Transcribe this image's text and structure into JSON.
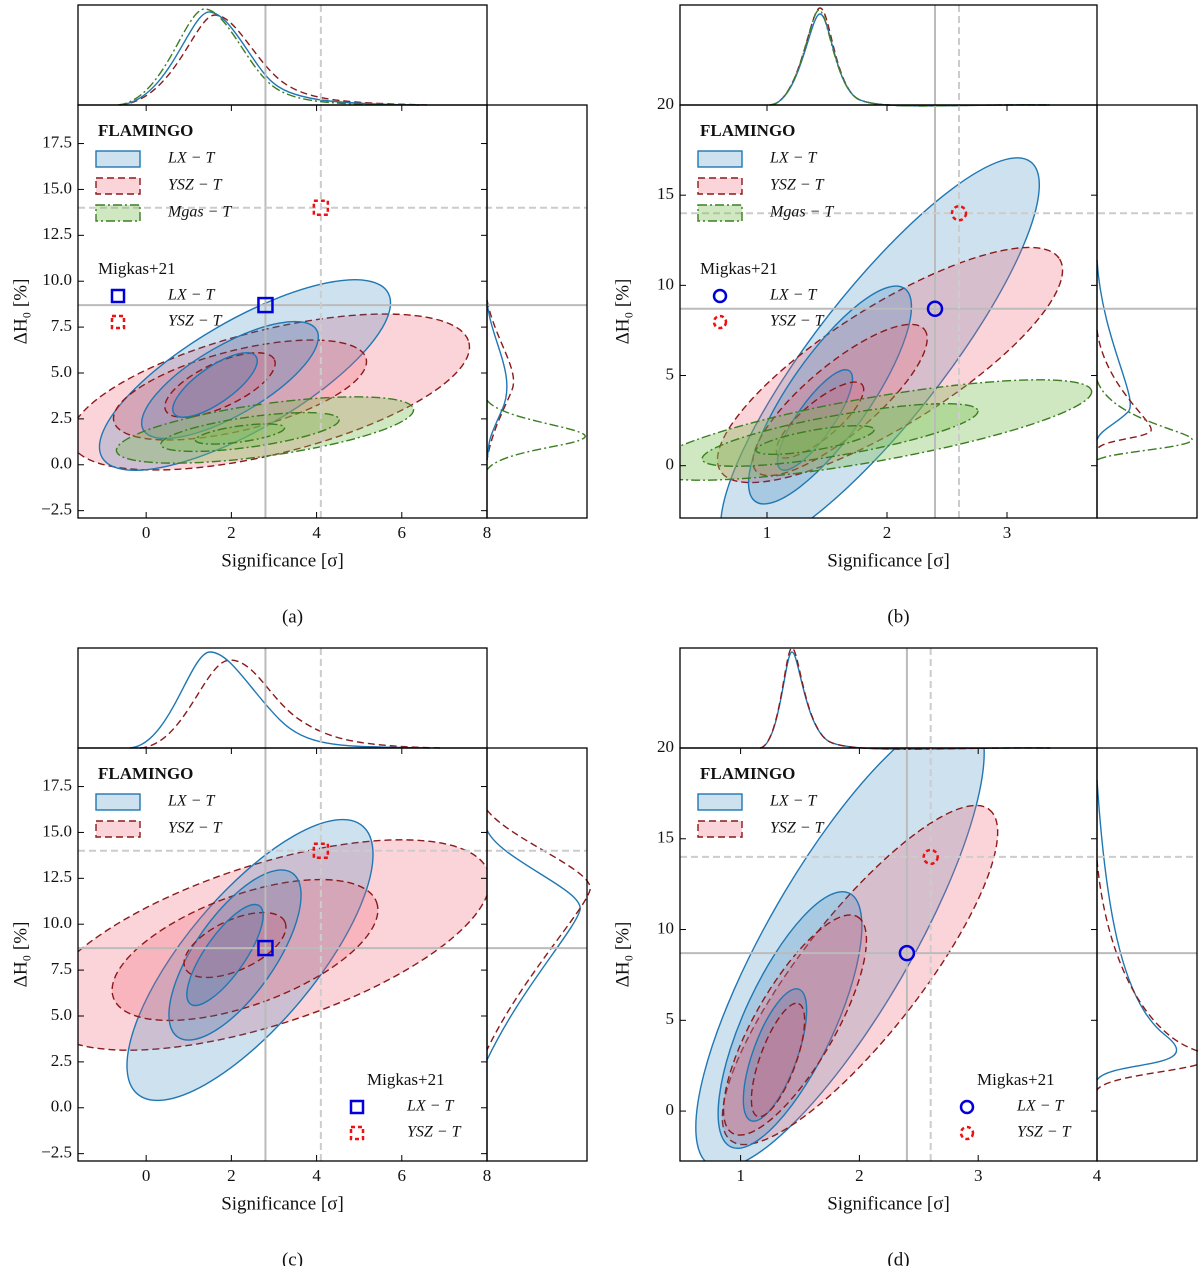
{
  "charts": [
    {
      "type": "scatter",
      "caption": "(a)",
      "xlabel": "Significance [σ]",
      "ylabel": "ΔH₀ [%]",
      "xlim": [
        -1.6,
        8
      ],
      "ylim": [
        -2.9,
        19.6
      ],
      "xticks": [
        0,
        2,
        4,
        6,
        8
      ],
      "yticks": [
        {
          "value": -2.5,
          "label": "−2.5"
        },
        {
          "value": 0,
          "label": "0.0"
        },
        2.5,
        {
          "value": 5,
          "label": "5.0"
        },
        7.5,
        {
          "value": 10,
          "label": "10.0"
        },
        12.5,
        {
          "value": 15,
          "label": "15.0"
        },
        17.5
      ],
      "flamingo_title": "FLAMINGO",
      "flamingo": [
        {
          "name": "LX − T",
          "color": "#1f77b4",
          "line": "solid"
        },
        {
          "name": "YSZ − T",
          "color": "#8b1a1a",
          "line": "dashed"
        },
        {
          "name": "Mgas − T",
          "color": "#3c7d22",
          "line": "dashdot"
        }
      ],
      "migkas_title": "Migkas+21",
      "migkas_legend": "upper left",
      "series": [
        {
          "name": "LX − T",
          "color": "#0000dd",
          "marker": "square",
          "line": "solid",
          "x": [
            2.8
          ],
          "values": [
            8.7
          ]
        },
        {
          "name": "YSZ − T",
          "color": "#ee1111",
          "marker": "square",
          "line": "dashed",
          "x": [
            4.1
          ],
          "values": [
            14
          ]
        }
      ]
    },
    {
      "type": "scatter",
      "caption": "(b)",
      "xlabel": "Significance [σ]",
      "ylabel": "ΔH₀ [%]",
      "xlim": [
        0.275,
        3.75
      ],
      "ylim": [
        -2.9,
        20
      ],
      "xticks": [
        1,
        2,
        3
      ],
      "yticks": [
        0,
        5,
        10,
        15,
        20
      ],
      "flamingo_title": "FLAMINGO",
      "flamingo": [
        {
          "name": "LX − T",
          "color": "#1f77b4",
          "line": "solid"
        },
        {
          "name": "YSZ − T",
          "color": "#8b1a1a",
          "line": "dashed"
        },
        {
          "name": "Mgas − T",
          "color": "#3c7d22",
          "line": "dashdot"
        }
      ],
      "migkas_title": "Migkas+21",
      "migkas_legend": "upper left",
      "series": [
        {
          "name": "LX − T",
          "color": "#0000dd",
          "marker": "circle",
          "line": "solid",
          "x": [
            2.4
          ],
          "values": [
            8.7
          ]
        },
        {
          "name": "YSZ − T",
          "color": "#ee1111",
          "marker": "circle",
          "line": "dashed",
          "x": [
            2.6
          ],
          "values": [
            14
          ]
        }
      ]
    },
    {
      "type": "scatter",
      "caption": "(c)",
      "xlabel": "Significance [σ]",
      "ylabel": "ΔH₀ [%]",
      "xlim": [
        -1.6,
        8
      ],
      "ylim": [
        -2.9,
        19.6
      ],
      "xticks": [
        0,
        2,
        4,
        6,
        8
      ],
      "yticks": [
        {
          "value": -2.5,
          "label": "−2.5"
        },
        {
          "value": 0,
          "label": "0.0"
        },
        2.5,
        {
          "value": 5,
          "label": "5.0"
        },
        7.5,
        {
          "value": 10,
          "label": "10.0"
        },
        12.5,
        {
          "value": 15,
          "label": "15.0"
        },
        17.5
      ],
      "flamingo_title": "FLAMINGO",
      "flamingo": [
        {
          "name": "LX − T",
          "color": "#1f77b4",
          "line": "solid"
        },
        {
          "name": "YSZ − T",
          "color": "#8b1a1a",
          "line": "dashed"
        }
      ],
      "migkas_title": "Migkas+21",
      "migkas_legend": "lower right",
      "series": [
        {
          "name": "LX − T",
          "color": "#0000dd",
          "marker": "square",
          "line": "solid",
          "x": [
            2.8
          ],
          "values": [
            8.7
          ]
        },
        {
          "name": "YSZ − T",
          "color": "#ee1111",
          "marker": "square",
          "line": "dashed",
          "x": [
            4.1
          ],
          "values": [
            14
          ]
        }
      ]
    },
    {
      "type": "scatter",
      "caption": "(d)",
      "xlabel": "Significance [σ]",
      "ylabel": "ΔH₀ [%]",
      "xlim": [
        0.49,
        4
      ],
      "ylim": [
        -2.75,
        20
      ],
      "xticks": [
        1,
        2,
        3,
        4
      ],
      "yticks": [
        0,
        5,
        10,
        15,
        20
      ],
      "flamingo_title": "FLAMINGO",
      "flamingo": [
        {
          "name": "LX − T",
          "color": "#1f77b4",
          "line": "solid"
        },
        {
          "name": "YSZ − T",
          "color": "#8b1a1a",
          "line": "dashed"
        }
      ],
      "migkas_title": "Migkas+21",
      "migkas_legend": "lower right",
      "series": [
        {
          "name": "LX − T",
          "color": "#0000dd",
          "marker": "circle",
          "line": "solid",
          "x": [
            2.4
          ],
          "values": [
            8.7
          ]
        },
        {
          "name": "YSZ − T",
          "color": "#ee1111",
          "marker": "circle",
          "line": "dashed",
          "x": [
            2.6
          ],
          "values": [
            14
          ]
        }
      ]
    }
  ]
}
